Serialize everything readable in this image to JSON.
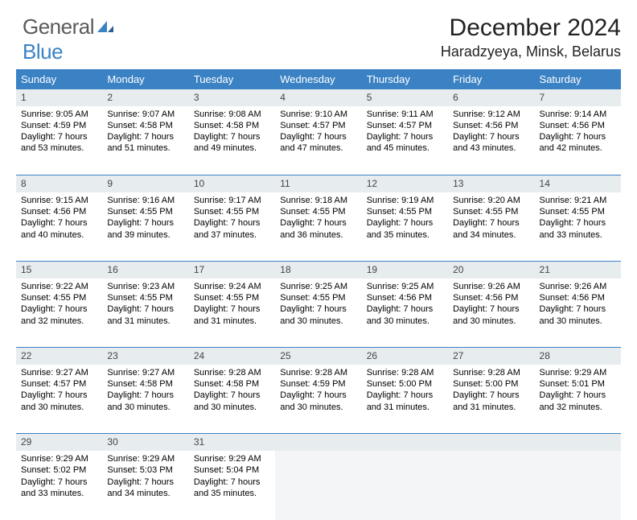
{
  "logo": {
    "text_gray": "General",
    "text_blue": "Blue"
  },
  "title": "December 2024",
  "location": "Haradzyeya, Minsk, Belarus",
  "colors": {
    "header_bg": "#3b82c4",
    "header_text": "#ffffff",
    "daynum_bg": "#e7ecef",
    "daynum_text": "#444444",
    "cell_text": "#000000",
    "row_divider": "#3b82c4",
    "empty_bg": "#f3f5f6",
    "logo_gray": "#5a5a5a",
    "logo_blue": "#3b82c4"
  },
  "typography": {
    "title_size_pt": 22,
    "location_size_pt": 13,
    "weekday_size_pt": 10,
    "daynum_size_pt": 9,
    "cell_size_pt": 8
  },
  "weekdays": [
    "Sunday",
    "Monday",
    "Tuesday",
    "Wednesday",
    "Thursday",
    "Friday",
    "Saturday"
  ],
  "weeks": [
    [
      {
        "n": "1",
        "sunrise": "Sunrise: 9:05 AM",
        "sunset": "Sunset: 4:59 PM",
        "day1": "Daylight: 7 hours",
        "day2": "and 53 minutes."
      },
      {
        "n": "2",
        "sunrise": "Sunrise: 9:07 AM",
        "sunset": "Sunset: 4:58 PM",
        "day1": "Daylight: 7 hours",
        "day2": "and 51 minutes."
      },
      {
        "n": "3",
        "sunrise": "Sunrise: 9:08 AM",
        "sunset": "Sunset: 4:58 PM",
        "day1": "Daylight: 7 hours",
        "day2": "and 49 minutes."
      },
      {
        "n": "4",
        "sunrise": "Sunrise: 9:10 AM",
        "sunset": "Sunset: 4:57 PM",
        "day1": "Daylight: 7 hours",
        "day2": "and 47 minutes."
      },
      {
        "n": "5",
        "sunrise": "Sunrise: 9:11 AM",
        "sunset": "Sunset: 4:57 PM",
        "day1": "Daylight: 7 hours",
        "day2": "and 45 minutes."
      },
      {
        "n": "6",
        "sunrise": "Sunrise: 9:12 AM",
        "sunset": "Sunset: 4:56 PM",
        "day1": "Daylight: 7 hours",
        "day2": "and 43 minutes."
      },
      {
        "n": "7",
        "sunrise": "Sunrise: 9:14 AM",
        "sunset": "Sunset: 4:56 PM",
        "day1": "Daylight: 7 hours",
        "day2": "and 42 minutes."
      }
    ],
    [
      {
        "n": "8",
        "sunrise": "Sunrise: 9:15 AM",
        "sunset": "Sunset: 4:56 PM",
        "day1": "Daylight: 7 hours",
        "day2": "and 40 minutes."
      },
      {
        "n": "9",
        "sunrise": "Sunrise: 9:16 AM",
        "sunset": "Sunset: 4:55 PM",
        "day1": "Daylight: 7 hours",
        "day2": "and 39 minutes."
      },
      {
        "n": "10",
        "sunrise": "Sunrise: 9:17 AM",
        "sunset": "Sunset: 4:55 PM",
        "day1": "Daylight: 7 hours",
        "day2": "and 37 minutes."
      },
      {
        "n": "11",
        "sunrise": "Sunrise: 9:18 AM",
        "sunset": "Sunset: 4:55 PM",
        "day1": "Daylight: 7 hours",
        "day2": "and 36 minutes."
      },
      {
        "n": "12",
        "sunrise": "Sunrise: 9:19 AM",
        "sunset": "Sunset: 4:55 PM",
        "day1": "Daylight: 7 hours",
        "day2": "and 35 minutes."
      },
      {
        "n": "13",
        "sunrise": "Sunrise: 9:20 AM",
        "sunset": "Sunset: 4:55 PM",
        "day1": "Daylight: 7 hours",
        "day2": "and 34 minutes."
      },
      {
        "n": "14",
        "sunrise": "Sunrise: 9:21 AM",
        "sunset": "Sunset: 4:55 PM",
        "day1": "Daylight: 7 hours",
        "day2": "and 33 minutes."
      }
    ],
    [
      {
        "n": "15",
        "sunrise": "Sunrise: 9:22 AM",
        "sunset": "Sunset: 4:55 PM",
        "day1": "Daylight: 7 hours",
        "day2": "and 32 minutes."
      },
      {
        "n": "16",
        "sunrise": "Sunrise: 9:23 AM",
        "sunset": "Sunset: 4:55 PM",
        "day1": "Daylight: 7 hours",
        "day2": "and 31 minutes."
      },
      {
        "n": "17",
        "sunrise": "Sunrise: 9:24 AM",
        "sunset": "Sunset: 4:55 PM",
        "day1": "Daylight: 7 hours",
        "day2": "and 31 minutes."
      },
      {
        "n": "18",
        "sunrise": "Sunrise: 9:25 AM",
        "sunset": "Sunset: 4:55 PM",
        "day1": "Daylight: 7 hours",
        "day2": "and 30 minutes."
      },
      {
        "n": "19",
        "sunrise": "Sunrise: 9:25 AM",
        "sunset": "Sunset: 4:56 PM",
        "day1": "Daylight: 7 hours",
        "day2": "and 30 minutes."
      },
      {
        "n": "20",
        "sunrise": "Sunrise: 9:26 AM",
        "sunset": "Sunset: 4:56 PM",
        "day1": "Daylight: 7 hours",
        "day2": "and 30 minutes."
      },
      {
        "n": "21",
        "sunrise": "Sunrise: 9:26 AM",
        "sunset": "Sunset: 4:56 PM",
        "day1": "Daylight: 7 hours",
        "day2": "and 30 minutes."
      }
    ],
    [
      {
        "n": "22",
        "sunrise": "Sunrise: 9:27 AM",
        "sunset": "Sunset: 4:57 PM",
        "day1": "Daylight: 7 hours",
        "day2": "and 30 minutes."
      },
      {
        "n": "23",
        "sunrise": "Sunrise: 9:27 AM",
        "sunset": "Sunset: 4:58 PM",
        "day1": "Daylight: 7 hours",
        "day2": "and 30 minutes."
      },
      {
        "n": "24",
        "sunrise": "Sunrise: 9:28 AM",
        "sunset": "Sunset: 4:58 PM",
        "day1": "Daylight: 7 hours",
        "day2": "and 30 minutes."
      },
      {
        "n": "25",
        "sunrise": "Sunrise: 9:28 AM",
        "sunset": "Sunset: 4:59 PM",
        "day1": "Daylight: 7 hours",
        "day2": "and 30 minutes."
      },
      {
        "n": "26",
        "sunrise": "Sunrise: 9:28 AM",
        "sunset": "Sunset: 5:00 PM",
        "day1": "Daylight: 7 hours",
        "day2": "and 31 minutes."
      },
      {
        "n": "27",
        "sunrise": "Sunrise: 9:28 AM",
        "sunset": "Sunset: 5:00 PM",
        "day1": "Daylight: 7 hours",
        "day2": "and 31 minutes."
      },
      {
        "n": "28",
        "sunrise": "Sunrise: 9:29 AM",
        "sunset": "Sunset: 5:01 PM",
        "day1": "Daylight: 7 hours",
        "day2": "and 32 minutes."
      }
    ],
    [
      {
        "n": "29",
        "sunrise": "Sunrise: 9:29 AM",
        "sunset": "Sunset: 5:02 PM",
        "day1": "Daylight: 7 hours",
        "day2": "and 33 minutes."
      },
      {
        "n": "30",
        "sunrise": "Sunrise: 9:29 AM",
        "sunset": "Sunset: 5:03 PM",
        "day1": "Daylight: 7 hours",
        "day2": "and 34 minutes."
      },
      {
        "n": "31",
        "sunrise": "Sunrise: 9:29 AM",
        "sunset": "Sunset: 5:04 PM",
        "day1": "Daylight: 7 hours",
        "day2": "and 35 minutes."
      },
      null,
      null,
      null,
      null
    ]
  ]
}
